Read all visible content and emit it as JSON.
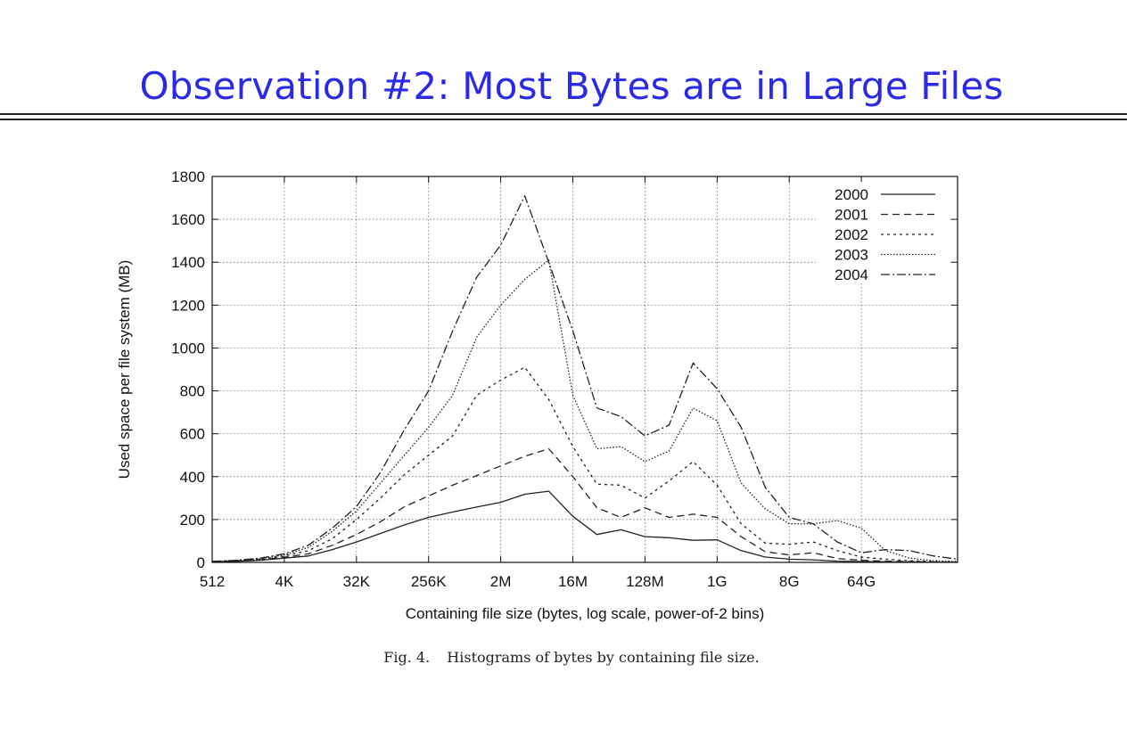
{
  "slide": {
    "title": "Observation #2: Most Bytes are in Large Files",
    "caption_figure": "Fig. 4.",
    "caption_text": "Histograms of bytes by containing file size."
  },
  "chart_data": {
    "type": "line",
    "xlabel": "Containing file size (bytes, log scale, power-of-2 bins)",
    "ylabel": "Used space per file system (MB)",
    "x_scale": "log2",
    "x_ticks": [
      {
        "exp": 9,
        "label": "512"
      },
      {
        "exp": 12,
        "label": "4K"
      },
      {
        "exp": 15,
        "label": "32K"
      },
      {
        "exp": 18,
        "label": "256K"
      },
      {
        "exp": 21,
        "label": "2M"
      },
      {
        "exp": 24,
        "label": "16M"
      },
      {
        "exp": 27,
        "label": "128M"
      },
      {
        "exp": 30,
        "label": "1G"
      },
      {
        "exp": 33,
        "label": "8G"
      },
      {
        "exp": 36,
        "label": "64G"
      }
    ],
    "xlim_exp": [
      9,
      40
    ],
    "ylim": [
      0,
      1800
    ],
    "y_ticks": [
      0,
      200,
      400,
      600,
      800,
      1000,
      1200,
      1400,
      1600,
      1800
    ],
    "grid": true,
    "legend_position": "top-right",
    "x_exp": [
      9,
      10,
      11,
      12,
      13,
      14,
      15,
      16,
      17,
      18,
      19,
      20,
      21,
      22,
      23,
      24,
      25,
      26,
      27,
      28,
      29,
      30,
      31,
      32,
      33,
      34,
      35,
      36,
      37,
      38,
      39,
      40
    ],
    "series": [
      {
        "name": "2000",
        "dash": "",
        "values": [
          2,
          5,
          10,
          20,
          30,
          60,
          95,
          135,
          175,
          210,
          235,
          258,
          280,
          318,
          332,
          215,
          130,
          152,
          120,
          115,
          103,
          105,
          55,
          25,
          15,
          12,
          6,
          4,
          3,
          2,
          1,
          1
        ]
      },
      {
        "name": "2001",
        "dash": "8,5",
        "values": [
          3,
          6,
          12,
          24,
          40,
          80,
          130,
          190,
          260,
          310,
          360,
          405,
          450,
          495,
          530,
          400,
          255,
          210,
          255,
          210,
          225,
          210,
          120,
          50,
          35,
          45,
          18,
          10,
          6,
          4,
          2,
          1
        ]
      },
      {
        "name": "2002",
        "dash": "3,4",
        "values": [
          4,
          8,
          15,
          30,
          55,
          110,
          200,
          300,
          410,
          500,
          590,
          780,
          850,
          910,
          760,
          540,
          365,
          360,
          300,
          380,
          470,
          360,
          180,
          90,
          85,
          95,
          55,
          25,
          15,
          8,
          4,
          2
        ]
      },
      {
        "name": "2003",
        "dash": "1.5,2",
        "values": [
          4,
          9,
          17,
          35,
          70,
          145,
          240,
          370,
          500,
          630,
          780,
          1050,
          1200,
          1320,
          1410,
          780,
          530,
          540,
          470,
          520,
          720,
          660,
          370,
          250,
          180,
          180,
          195,
          160,
          55,
          20,
          8,
          4
        ]
      },
      {
        "name": "2004",
        "dash": "10,3,2,3",
        "values": [
          5,
          10,
          20,
          40,
          80,
          160,
          260,
          420,
          620,
          800,
          1080,
          1330,
          1480,
          1710,
          1400,
          1080,
          720,
          680,
          590,
          640,
          930,
          810,
          630,
          350,
          210,
          180,
          95,
          45,
          60,
          55,
          30,
          15
        ]
      }
    ]
  }
}
